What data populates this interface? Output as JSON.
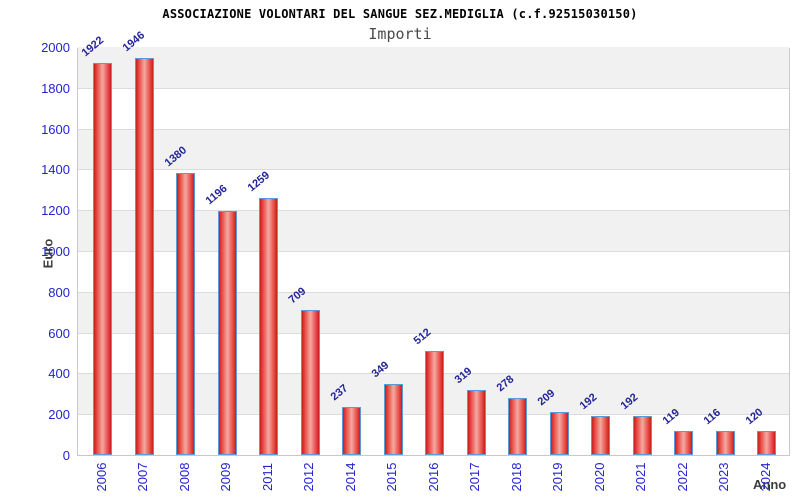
{
  "chart_data": {
    "type": "bar",
    "title": "ASSOCIAZIONE VOLONTARI DEL SANGUE SEZ.MEDIGLIA (c.f.92515030150)",
    "subtitle": "Importi",
    "xlabel": "Anno",
    "ylabel": "Euro",
    "categories": [
      "2006",
      "2007",
      "2008",
      "2009",
      "2011",
      "2012",
      "2014",
      "2015",
      "2016",
      "2017",
      "2018",
      "2019",
      "2020",
      "2021",
      "2022",
      "2023",
      "2024"
    ],
    "values": [
      1922,
      1946,
      1380,
      1196,
      1259,
      709,
      237,
      349,
      512,
      319,
      278,
      209,
      192,
      192,
      119,
      116,
      120
    ],
    "ylim": [
      0,
      2000
    ],
    "ytick_step": 200,
    "grid": true,
    "legend": "none",
    "colors": {
      "bar_edge": "#c42020",
      "bar_mid": "#ea4a44",
      "bar_center": "#f3a9a2",
      "bar_border": "#5b9bd5",
      "tick_label": "#2424cf",
      "value_label": "#242499",
      "band_gray": "#f1f1f1",
      "band_white": "#ffffff",
      "grid_line": "#dcdcdc",
      "plot_border": "#c9c9c9",
      "axis_title": "#3d3d3d",
      "title": "#000000",
      "subtitle": "#4a4a4a"
    }
  }
}
